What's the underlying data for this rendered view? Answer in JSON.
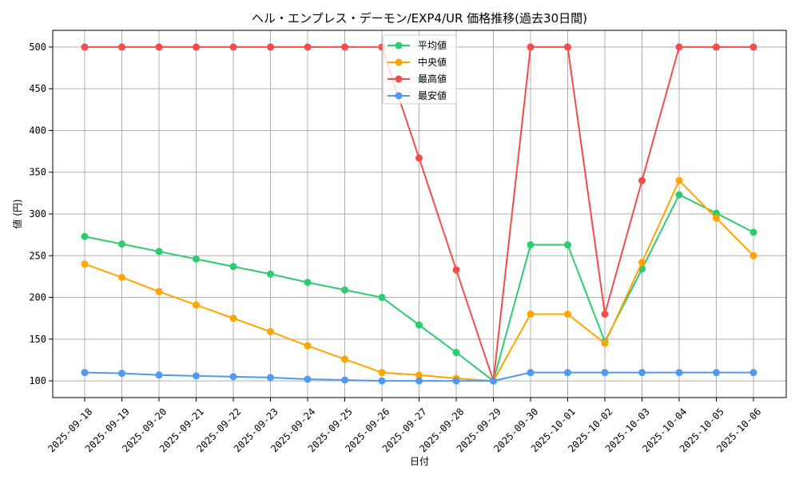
{
  "chart_data": {
    "type": "line",
    "title": "ヘル・エンプレス・デーモン/EXP4/UR 価格推移(過去30日間)",
    "xlabel": "日付",
    "ylabel": "値 (円)",
    "ylim": [
      80,
      520
    ],
    "yticks": [
      100,
      150,
      200,
      250,
      300,
      350,
      400,
      450,
      500
    ],
    "grid": true,
    "legend_position": "top-center",
    "categories": [
      "2025-09-18",
      "2025-09-19",
      "2025-09-20",
      "2025-09-21",
      "2025-09-22",
      "2025-09-23",
      "2025-09-24",
      "2025-09-25",
      "2025-09-26",
      "2025-09-27",
      "2025-09-28",
      "2025-09-29",
      "2025-09-30",
      "2025-10-01",
      "2025-10-02",
      "2025-10-03",
      "2025-10-04",
      "2025-10-05",
      "2025-10-06"
    ],
    "series": [
      {
        "name": "平均値",
        "color": "#2ecc71",
        "values": [
          273,
          264,
          255,
          246,
          237,
          228,
          218,
          209,
          200,
          167,
          134,
          100,
          263,
          263,
          147,
          234,
          323,
          301,
          278
        ]
      },
      {
        "name": "中央値",
        "color": "#ffa500",
        "values": [
          240,
          224,
          207,
          191,
          175,
          159,
          142,
          126,
          110,
          107,
          103,
          100,
          180,
          180,
          145,
          242,
          340,
          295,
          250
        ]
      },
      {
        "name": "最高値",
        "color": "#f44b4b",
        "values": [
          500,
          500,
          500,
          500,
          500,
          500,
          500,
          500,
          500,
          367,
          233,
          100,
          500,
          500,
          180,
          340,
          500,
          500,
          500
        ]
      },
      {
        "name": "最安値",
        "color": "#4e9af1",
        "values": [
          110,
          109,
          107,
          106,
          105,
          104,
          102,
          101,
          100,
          100,
          100,
          100,
          110,
          110,
          110,
          110,
          110,
          110,
          110
        ]
      }
    ]
  }
}
